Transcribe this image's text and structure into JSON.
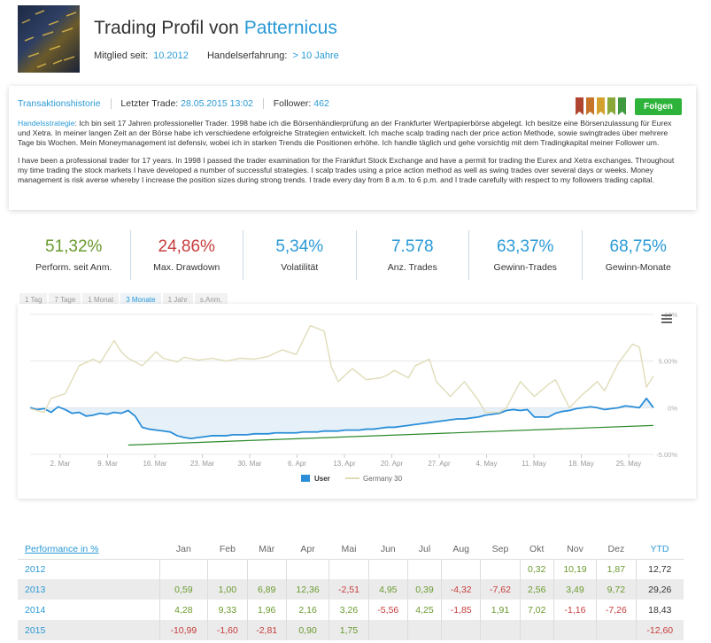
{
  "header": {
    "title": "Trading Profil von",
    "trader_name": "Patternicus",
    "member_since_label": "Mitglied seit:",
    "member_since_value": "10.2012",
    "experience_label": "Handelserfahrung:",
    "experience_value": "> 10 Jahre"
  },
  "profile": {
    "history_link": "Transaktionshistorie",
    "last_trade_label": "Letzter Trade:",
    "last_trade_value": "28.05.2015 13:02",
    "followers_label": "Follower:",
    "followers_value": "462",
    "follow_button": "Folgen",
    "strategy_label": "Handelsstrategie",
    "strategy_de": ": Ich bin seit 17 Jahren professioneller Trader. 1998 habe ich die Börsenhändlerprüfung an der Frankfurter Wertpapierbörse abgelegt. Ich besitze eine Börsenzulassung für Eurex und Xetra. In meiner langen Zeit an der Börse habe ich verschiedene erfolgreiche Strategien entwickelt. Ich mache scalp trading nach der price action Methode, sowie swingtrades über mehrere Tage bis Wochen. Mein Moneymanagement ist defensiv, wobei ich in starken Trends die Positionen erhöhe. Ich handle täglich und gehe vorsichtig mit dem Tradingkapital meiner Follower um.",
    "strategy_en": "I have been a professional trader for 17 years. In 1998 I passed the trader examination for the Frankfurt Stock Exchange and have a permit for trading the Eurex and Xetra exchanges. Throughout my time trading the stock markets I have developed a number of successful strategies. I scalp trades using a price action method as well as swing trades over several days or weeks. Money management is risk averse whereby I increase the position sizes during strong trends. I trade every day from 8 a.m. to 6 p.m. and I trade carefully with respect to my followers trading capital.",
    "ribbon_colors": [
      "#b0452f",
      "#c8732a",
      "#d4a12e",
      "#8aa83a",
      "#3f9a3f"
    ]
  },
  "stats": [
    {
      "value": "51,32%",
      "label": "Perform. seit Anm.",
      "color": "green"
    },
    {
      "value": "24,86%",
      "label": "Max. Drawdown",
      "color": "red"
    },
    {
      "value": "5,34%",
      "label": "Volatilität",
      "color": "blue"
    },
    {
      "value": "7.578",
      "label": "Anz. Trades",
      "color": "blue"
    },
    {
      "value": "63,37%",
      "label": "Gewinn-Trades",
      "color": "blue"
    },
    {
      "value": "68,75%",
      "label": "Gewinn-Monate",
      "color": "blue"
    }
  ],
  "chart_tabs": [
    {
      "label": "1 Tag",
      "active": false
    },
    {
      "label": "7 Tage",
      "active": false
    },
    {
      "label": "1 Monat",
      "active": false
    },
    {
      "label": "3 Monate",
      "active": true
    },
    {
      "label": "1 Jahr",
      "active": false
    },
    {
      "label": "s.Anm.",
      "active": false
    }
  ],
  "chart_data": {
    "type": "line",
    "x_ticks": [
      "2. Mar",
      "9. Mar",
      "16. Mar",
      "23. Mar",
      "30. Mar",
      "6. Apr",
      "13. Apr",
      "20. Apr",
      "27. Apr",
      "4. May",
      "11. May",
      "18. May",
      "25. May"
    ],
    "y_ticks": [
      "10%",
      "5.00%",
      "0%",
      "-5.00%"
    ],
    "ylim": [
      -5,
      10
    ],
    "series": [
      {
        "name": "User",
        "color": "#2a8ed8",
        "x": [
          0,
          1,
          2,
          3,
          4,
          5,
          6,
          7,
          8,
          9,
          10,
          11,
          12,
          13,
          14,
          15,
          16,
          17,
          18,
          19,
          20,
          21,
          22,
          23,
          24,
          25,
          26,
          27,
          28,
          29,
          30,
          31,
          32,
          33,
          34,
          35,
          36,
          37,
          38,
          39,
          40,
          41,
          42,
          43,
          44,
          45,
          46,
          47,
          48,
          49,
          50,
          51,
          52,
          53,
          54,
          55,
          56,
          57,
          58,
          59,
          60,
          61,
          62,
          63,
          64,
          65,
          66,
          67,
          68,
          69,
          70,
          71,
          72,
          73,
          74,
          75,
          76,
          77,
          78,
          79,
          80,
          81,
          82,
          83,
          84,
          85,
          86,
          87,
          88,
          89
        ],
        "values": [
          0.0,
          -0.2,
          -0.1,
          -0.5,
          0.1,
          -0.2,
          -0.6,
          -0.5,
          -0.9,
          -0.8,
          -0.6,
          -0.7,
          -0.5,
          -0.6,
          -0.3,
          -0.9,
          -2.1,
          -2.3,
          -2.4,
          -2.5,
          -2.6,
          -3.0,
          -3.2,
          -3.3,
          -3.2,
          -3.1,
          -3.0,
          -3.0,
          -3.0,
          -2.9,
          -2.9,
          -2.9,
          -2.8,
          -2.8,
          -2.8,
          -2.7,
          -2.7,
          -2.7,
          -2.7,
          -2.6,
          -2.6,
          -2.6,
          -2.5,
          -2.5,
          -2.5,
          -2.4,
          -2.4,
          -2.4,
          -2.3,
          -2.3,
          -2.2,
          -2.1,
          -2.1,
          -2.0,
          -1.9,
          -1.8,
          -1.7,
          -1.6,
          -1.5,
          -1.4,
          -1.3,
          -1.2,
          -1.2,
          -1.1,
          -1.0,
          -0.8,
          -0.7,
          -0.6,
          -0.3,
          -0.2,
          -0.3,
          -0.2,
          -1.0,
          -1.0,
          -1.0,
          -0.6,
          -0.4,
          -0.3,
          -0.1,
          0.0,
          0.1,
          0.0,
          -0.2,
          -0.1,
          0.0,
          0.2,
          0.1,
          0.0,
          1.0,
          0.0
        ]
      },
      {
        "name": "Germany 30",
        "color": "#e0dcb8",
        "x": [
          0,
          2,
          3,
          5,
          7,
          9,
          10,
          12,
          13,
          14,
          16,
          18,
          19,
          21,
          22,
          24,
          26,
          28,
          30,
          32,
          34,
          36,
          38,
          40,
          42,
          43,
          44,
          46,
          48,
          50,
          51,
          52,
          54,
          55,
          57,
          58,
          60,
          62,
          64,
          65,
          67,
          68,
          70,
          72,
          74,
          75,
          77,
          79,
          81,
          82,
          84,
          85,
          86,
          87,
          88,
          89
        ],
        "values": [
          -0.1,
          -0.5,
          1.0,
          1.5,
          4.5,
          5.2,
          4.8,
          7.2,
          6.0,
          5.3,
          4.5,
          6.0,
          5.3,
          4.9,
          5.4,
          5.1,
          5.3,
          5.0,
          5.3,
          5.2,
          5.5,
          6.2,
          5.7,
          8.8,
          8.2,
          4.4,
          2.8,
          4.2,
          3.0,
          3.2,
          3.5,
          4.0,
          3.2,
          4.5,
          5.2,
          2.8,
          1.2,
          2.8,
          0.8,
          -0.5,
          -0.5,
          0.0,
          2.8,
          1.2,
          2.5,
          3.0,
          0.0,
          1.5,
          2.8,
          1.8,
          4.8,
          5.8,
          6.8,
          6.5,
          2.2,
          3.4
        ]
      },
      {
        "name": "",
        "color": "#2c8a2c",
        "x": [
          14,
          89
        ],
        "values": [
          -4.0,
          -1.9
        ]
      }
    ],
    "legend": [
      "User",
      "Germany 30"
    ],
    "legend_position": "bottom"
  },
  "performance": {
    "header": {
      "first": "Performance in %",
      "months": [
        "Jan",
        "Feb",
        "Mär",
        "Apr",
        "Mai",
        "Jun",
        "Jul",
        "Aug",
        "Sep",
        "Okt",
        "Nov",
        "Dez"
      ],
      "ytd": "YTD"
    },
    "rows": [
      {
        "year": "2012",
        "cells": [
          "",
          "",
          "",
          "",
          "",
          "",
          "",
          "",
          "",
          "0,32",
          "10,19",
          "1,87",
          "12,72"
        ]
      },
      {
        "year": "2013",
        "cells": [
          "0,59",
          "1,00",
          "6,89",
          "12,36",
          "-2,51",
          "4,95",
          "0,39",
          "-4,32",
          "-7,62",
          "2,56",
          "3,49",
          "9,72",
          "29,26"
        ]
      },
      {
        "year": "2014",
        "cells": [
          "4,28",
          "9,33",
          "1,96",
          "2,16",
          "3,26",
          "-5,56",
          "4,25",
          "-1,85",
          "1,91",
          "7,02",
          "-1,16",
          "-7,26",
          "18,43"
        ]
      },
      {
        "year": "2015",
        "cells": [
          "-10,99",
          "-1,60",
          "-2,81",
          "0,90",
          "1,75",
          "",
          "",
          "",
          "",
          "",
          "",
          "",
          "-12,60"
        ]
      }
    ]
  }
}
